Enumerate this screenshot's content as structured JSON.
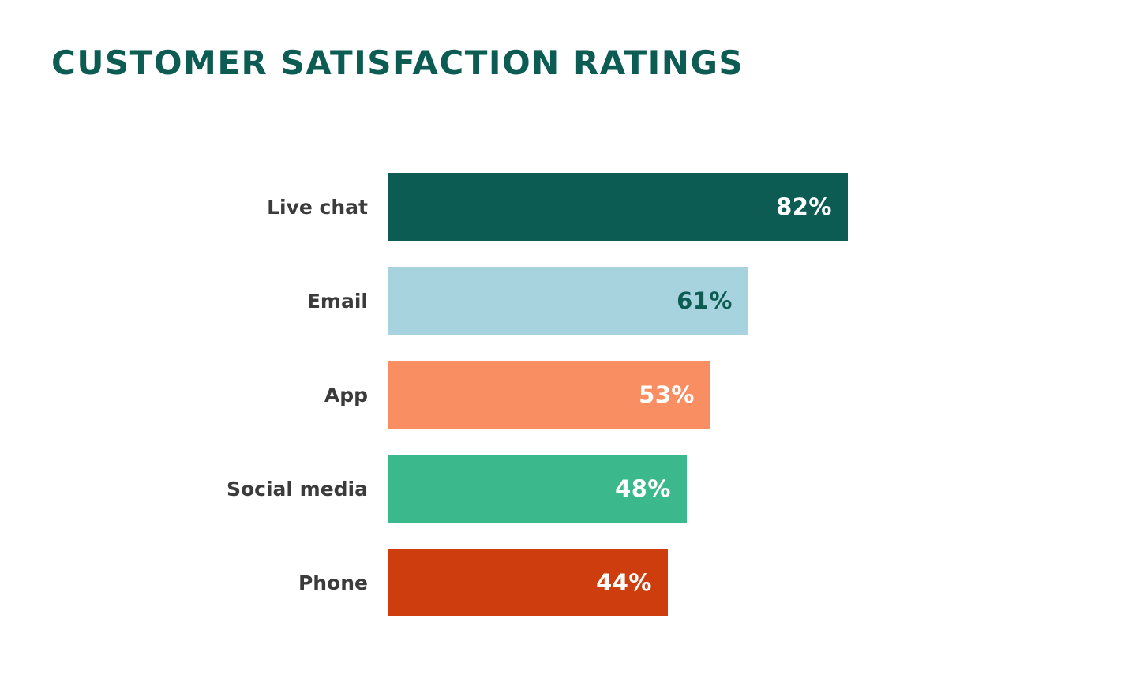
{
  "page": {
    "background": "#ffffff"
  },
  "chart_data": {
    "type": "bar",
    "orientation": "horizontal",
    "title": "CUSTOMER SATISFACTION RATINGS",
    "title_color": "#0d5c53",
    "categories": [
      "Live chat",
      "Email",
      "App",
      "Social media",
      "Phone"
    ],
    "values": [
      82,
      61,
      53,
      48,
      44
    ],
    "value_labels": [
      "82%",
      "61%",
      "53%",
      "48%",
      "44%"
    ],
    "bar_colors": [
      "#0d5c53",
      "#a7d3de",
      "#f98e63",
      "#3cb98c",
      "#ce3d0e"
    ],
    "value_label_colors": [
      "#ffffff",
      "#0d5c53",
      "#ffffff",
      "#ffffff",
      "#ffffff"
    ],
    "category_label_color": "#3b3b3b",
    "xlim": [
      0,
      100
    ],
    "grid": false,
    "legend": false,
    "axis_visible": false
  }
}
